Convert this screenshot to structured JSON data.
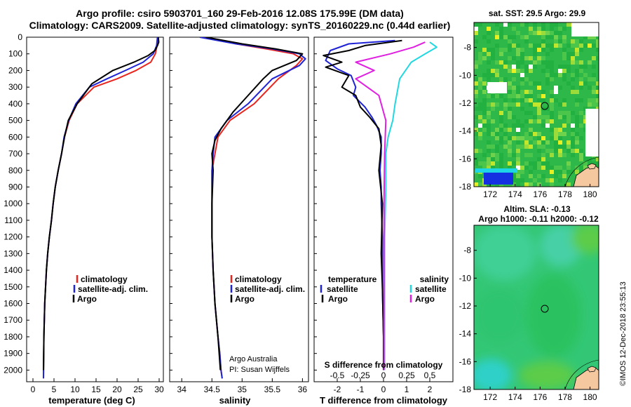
{
  "header": {
    "line1": "Argo profile: csiro 5903701_160 29-Feb-2016 12.08S 175.99E (DM data)",
    "line2": "Climatology: CARS2009. Satellite-adjusted climatology: synTS_20160229.nc (0.44d earlier)"
  },
  "colors": {
    "climatology": "#e8261f",
    "satellite": "#1f23d6",
    "argo": "#000000",
    "argo_s_diff": "#e020e0",
    "sat_s_diff": "#22d8e0"
  },
  "chart_data": [
    {
      "type": "line",
      "id": "temperature",
      "xlabel": "temperature (deg C)",
      "ylabel": "",
      "xlim": [
        -1.5,
        31
      ],
      "xticks": [
        0,
        5,
        10,
        15,
        20,
        25,
        30
      ],
      "ylim": [
        0,
        2070
      ],
      "yticks": [
        0,
        100,
        200,
        300,
        400,
        500,
        600,
        700,
        800,
        900,
        1000,
        1100,
        1200,
        1300,
        1400,
        1500,
        1600,
        1700,
        1800,
        1900,
        2000
      ],
      "legend": [
        "climatology",
        "satellite-adj. clim.",
        "Argo"
      ],
      "series": [
        {
          "name": "climatology",
          "x": [
            29.7,
            29.5,
            29.1,
            28.0,
            24.5,
            20.0,
            14.5,
            10.5,
            8.6,
            7.5,
            6.8,
            6.0,
            5.3,
            4.8,
            4.4,
            3.9,
            3.5,
            3.2,
            3.0,
            2.8,
            2.6,
            2.5
          ],
          "y": [
            0,
            50,
            100,
            150,
            200,
            250,
            300,
            400,
            500,
            600,
            700,
            800,
            900,
            1000,
            1100,
            1200,
            1300,
            1400,
            1500,
            1600,
            1800,
            2050
          ]
        },
        {
          "name": "satellite-adj. clim.",
          "x": [
            29.6,
            29.4,
            28.6,
            26.2,
            22.0,
            17.6,
            13.4,
            10.2,
            8.5,
            7.4,
            6.8,
            6.0,
            5.3,
            4.8,
            4.4,
            3.9,
            3.5,
            3.2,
            3.0,
            2.8,
            2.6,
            2.5
          ],
          "y": [
            0,
            50,
            100,
            150,
            200,
            250,
            300,
            400,
            500,
            600,
            700,
            800,
            900,
            1000,
            1100,
            1200,
            1300,
            1400,
            1500,
            1600,
            1800,
            2050
          ]
        },
        {
          "name": "Argo",
          "x": [
            29.8,
            29.9,
            29.6,
            29.0,
            27.4,
            24.0,
            19.0,
            14.0,
            10.5,
            8.4,
            7.5,
            6.8,
            6.0,
            5.3,
            4.8,
            4.4,
            3.9,
            3.5,
            3.2,
            3.0,
            2.8,
            2.6,
            2.5
          ],
          "y": [
            0,
            30,
            50,
            80,
            110,
            150,
            200,
            280,
            400,
            500,
            600,
            700,
            800,
            900,
            1000,
            1100,
            1200,
            1300,
            1400,
            1500,
            1600,
            1800,
            2000
          ]
        }
      ]
    },
    {
      "type": "line",
      "id": "salinity",
      "xlabel": "salinity",
      "xlim": [
        33.8,
        36.1
      ],
      "xticks": [
        34,
        34.5,
        35,
        35.5,
        36
      ],
      "ylim": [
        0,
        2070
      ],
      "legend": [
        "climatology",
        "satellite-adj. clim.",
        "Argo"
      ],
      "annotation": [
        "Argo Australia",
        "PI: Susan Wijffels"
      ],
      "series": [
        {
          "name": "climatology",
          "x": [
            34.4,
            34.9,
            35.4,
            35.85,
            36.0,
            35.9,
            35.6,
            35.2,
            34.8,
            34.6,
            34.55,
            34.5,
            34.5,
            34.5,
            34.52,
            34.55,
            34.6,
            34.63,
            34.65,
            34.67
          ],
          "y": [
            0,
            40,
            70,
            100,
            130,
            170,
            250,
            400,
            500,
            600,
            700,
            800,
            1000,
            1200,
            1400,
            1600,
            1800,
            1900,
            2000,
            2050
          ]
        },
        {
          "name": "satellite-adj. clim.",
          "x": [
            34.3,
            34.9,
            35.5,
            35.95,
            36.05,
            35.95,
            35.5,
            35.1,
            34.75,
            34.55,
            34.52,
            34.5,
            34.5,
            34.5,
            34.52,
            34.55,
            34.6,
            34.63,
            34.65,
            34.67
          ],
          "y": [
            0,
            40,
            70,
            100,
            130,
            170,
            250,
            400,
            500,
            600,
            700,
            800,
            1000,
            1200,
            1400,
            1600,
            1800,
            1900,
            2000,
            2050
          ]
        },
        {
          "name": "Argo",
          "x": [
            34.4,
            35.0,
            35.55,
            36.0,
            35.9,
            35.5,
            35.35,
            35.1,
            34.85,
            34.65,
            34.55,
            34.5,
            34.52,
            34.5,
            34.5,
            34.52,
            34.55,
            34.6,
            34.62,
            34.64
          ],
          "y": [
            0,
            40,
            70,
            100,
            140,
            200,
            250,
            350,
            450,
            550,
            620,
            700,
            800,
            1000,
            1200,
            1400,
            1600,
            1800,
            1900,
            2000
          ]
        }
      ]
    },
    {
      "type": "line",
      "id": "difference",
      "xlabel": "T difference from climatology",
      "top_xlabel": "S difference from climatology",
      "xlim": [
        -3,
        3
      ],
      "xticks": [
        -2,
        -1,
        0,
        1,
        2
      ],
      "top_xticks": [
        "-0.5",
        "-0.25",
        "0",
        "0.25",
        "0.5"
      ],
      "ylim": [
        0,
        2070
      ],
      "legend_left_title": "temperature",
      "legend_right_title": "salinity",
      "legend_left": [
        "satellite",
        "Argo"
      ],
      "legend_right": [
        "satellite",
        "Argo"
      ],
      "series": [
        {
          "name": "T satellite",
          "x": [
            0.5,
            -1.5,
            -2.3,
            -2.5,
            -2.0,
            -1.4,
            -1.2,
            -1.3,
            -0.8,
            -0.5,
            -0.3,
            -0.1,
            -0.1,
            -0.15,
            -0.1,
            -0.1,
            -0.05,
            -0.05,
            0,
            0
          ],
          "y": [
            20,
            40,
            80,
            140,
            190,
            230,
            300,
            350,
            420,
            480,
            530,
            600,
            700,
            800,
            900,
            1000,
            1200,
            1500,
            1800,
            2000
          ]
        },
        {
          "name": "T Argo",
          "x": [
            0.8,
            -0.8,
            -1.5,
            -2.6,
            -1.8,
            -2.5,
            -1.5,
            -1.8,
            -1.2,
            -1.0,
            -0.6,
            -0.2,
            -0.1,
            -0.2,
            -0.05,
            -0.1,
            -0.05,
            0,
            0
          ],
          "y": [
            20,
            50,
            80,
            110,
            150,
            180,
            230,
            300,
            350,
            420,
            480,
            550,
            650,
            800,
            1000,
            1300,
            1500,
            1800,
            2000
          ]
        },
        {
          "name": "S satellite",
          "x": [
            2.0,
            2.3,
            1.8,
            1.2,
            0.7,
            0.5,
            0.4,
            0.2,
            0.1,
            0.1,
            0.05,
            0.05,
            0.05
          ],
          "y": [
            30,
            60,
            100,
            150,
            250,
            400,
            500,
            600,
            700,
            900,
            1200,
            1600,
            2000
          ]
        },
        {
          "name": "S Argo",
          "x": [
            1.8,
            1.3,
            0.3,
            -1.2,
            -0.4,
            -1.2,
            -0.2,
            0.1,
            0.05,
            0.02,
            0.02,
            0.02
          ],
          "y": [
            30,
            60,
            100,
            150,
            200,
            250,
            350,
            500,
            700,
            1000,
            1500,
            2000
          ]
        }
      ]
    },
    {
      "type": "heatmap",
      "id": "sst-map",
      "title": "sat. SST: 29.5 Argo: 29.9",
      "xticks": [
        "172",
        "174",
        "176",
        "178",
        "180"
      ],
      "yticks": [
        "-8",
        "-10",
        "-12",
        "-14",
        "-16",
        "-18"
      ],
      "xlim": [
        170.7,
        180.7
      ],
      "ylim": [
        -18,
        -6.2
      ],
      "marker": [
        176,
        -12.08
      ]
    },
    {
      "type": "heatmap",
      "id": "sla-map",
      "title_line1": "Altim. SLA: -0.13",
      "title_line2": "Argo h1000: -0.11 h2000: -0.12",
      "xticks": [
        "172",
        "174",
        "176",
        "178",
        "180"
      ],
      "yticks": [
        "-8",
        "-10",
        "-12",
        "-14",
        "-16",
        "-18"
      ],
      "xlim": [
        170.7,
        180.7
      ],
      "ylim": [
        -18,
        -6.2
      ],
      "marker": [
        176,
        -12.08
      ]
    }
  ],
  "watermark": "©IMOS 12-Dec-2018 23:55:13"
}
